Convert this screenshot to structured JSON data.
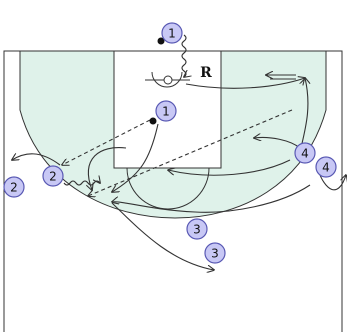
{
  "diagram": {
    "court_fill": "#ffffff",
    "zone_fill": "#dff2ea",
    "line_color": "#333333",
    "player_fill": "#c8c8f5",
    "player_stroke": "#5a5ab4",
    "rebounder_label": "R",
    "players": [
      {
        "id": "p1-top",
        "label": "1"
      },
      {
        "id": "p1-post",
        "label": "1"
      },
      {
        "id": "p2-a",
        "label": "2"
      },
      {
        "id": "p2-b",
        "label": "2"
      },
      {
        "id": "p3-a",
        "label": "3"
      },
      {
        "id": "p3-b",
        "label": "3"
      },
      {
        "id": "p4-a",
        "label": "4"
      },
      {
        "id": "p4-b",
        "label": "4"
      }
    ]
  }
}
